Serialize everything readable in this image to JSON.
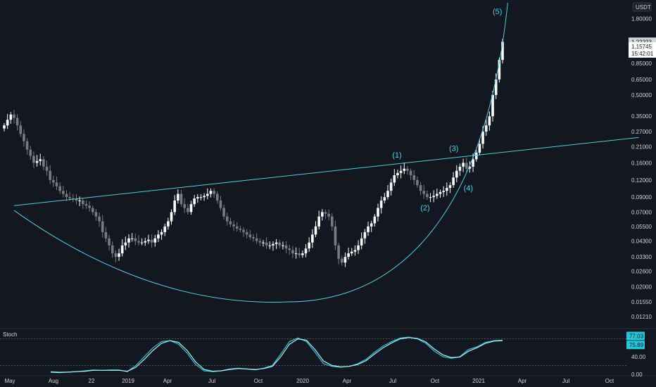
{
  "chart_data": [
    {
      "type": "candlestick",
      "title": "",
      "quote_unit": "USDT",
      "y_scale": "log",
      "ylim": [
        0.0105,
        2.35
      ],
      "y_ticks": [
        "1.80000",
        "1.22223",
        "0.85000",
        "0.65000",
        "0.50000",
        "0.35000",
        "0.27000",
        "0.21000",
        "0.16000",
        "0.12000",
        "0.09000",
        "0.07000",
        "0.05500",
        "0.04300",
        "0.03300",
        "0.02600",
        "0.02000",
        "0.01550",
        "0.01210"
      ],
      "x_ticks": [
        "May",
        "Aug",
        "22",
        "2019",
        "Apr",
        "Jul",
        "Oct",
        "2020",
        "Apr",
        "Jul",
        "Oct",
        "2021",
        "Apr",
        "Jul",
        "Oct"
      ],
      "price_labels": {
        "last_close": "1.22223",
        "prev_price": "1.15745",
        "countdown": "15:42:01",
        "last_close_value": 1.22223,
        "prev_price_value": 1.15745
      },
      "elliott_wave_labels": [
        {
          "text": "(1)",
          "x": "2020-07",
          "y": 0.175
        },
        {
          "text": "(2)",
          "x": "2020-09",
          "y": 0.072
        },
        {
          "text": "(3)",
          "x": "2020-11",
          "y": 0.195
        },
        {
          "text": "(4)",
          "x": "2020-12",
          "y": 0.1
        },
        {
          "text": "(5)",
          "x": "2021-02",
          "y": 1.95
        }
      ],
      "trendline": {
        "from": {
          "x": "2018-05",
          "y": 0.078
        },
        "to": {
          "x": "2021-12",
          "y": 0.245
        }
      },
      "cup_curve": {
        "start": {
          "x": "2018-05",
          "y": 0.072
        },
        "bottom": {
          "x": "2019-12",
          "y": 0.0155
        },
        "end": {
          "x": "2021-03",
          "y": 2.35
        }
      },
      "grid": false,
      "weekly_close_series": [
        0.3,
        0.33,
        0.36,
        0.34,
        0.3,
        0.26,
        0.23,
        0.2,
        0.18,
        0.16,
        0.165,
        0.17,
        0.15,
        0.14,
        0.12,
        0.115,
        0.108,
        0.1,
        0.095,
        0.09,
        0.088,
        0.087,
        0.085,
        0.085,
        0.08,
        0.078,
        0.075,
        0.07,
        0.065,
        0.06,
        0.05,
        0.045,
        0.04,
        0.035,
        0.033,
        0.035,
        0.04,
        0.042,
        0.045,
        0.045,
        0.043,
        0.042,
        0.042,
        0.043,
        0.044,
        0.042,
        0.045,
        0.048,
        0.05,
        0.055,
        0.06,
        0.07,
        0.085,
        0.095,
        0.08,
        0.075,
        0.07,
        0.08,
        0.088,
        0.09,
        0.09,
        0.092,
        0.095,
        0.1,
        0.095,
        0.085,
        0.075,
        0.065,
        0.06,
        0.057,
        0.055,
        0.053,
        0.052,
        0.05,
        0.048,
        0.046,
        0.045,
        0.043,
        0.042,
        0.042,
        0.04,
        0.04,
        0.041,
        0.042,
        0.04,
        0.04,
        0.038,
        0.037,
        0.035,
        0.035,
        0.034,
        0.035,
        0.038,
        0.042,
        0.048,
        0.055,
        0.065,
        0.07,
        0.068,
        0.065,
        0.055,
        0.04,
        0.032,
        0.03,
        0.033,
        0.035,
        0.036,
        0.037,
        0.04,
        0.045,
        0.05,
        0.055,
        0.058,
        0.065,
        0.075,
        0.085,
        0.09,
        0.1,
        0.115,
        0.13,
        0.135,
        0.14,
        0.145,
        0.14,
        0.13,
        0.12,
        0.11,
        0.1,
        0.095,
        0.09,
        0.09,
        0.092,
        0.095,
        0.098,
        0.1,
        0.105,
        0.11,
        0.125,
        0.14,
        0.15,
        0.16,
        0.145,
        0.15,
        0.17,
        0.19,
        0.22,
        0.27,
        0.3,
        0.35,
        0.5,
        0.65,
        0.9,
        1.22223
      ],
      "notes": "weekly closes from May 2018 to Feb 2021 (estimated from chart)"
    },
    {
      "type": "line",
      "title": "Stoch",
      "ylim": [
        0,
        100
      ],
      "y_ticks": [
        "40.00",
        "0.00"
      ],
      "y_tick_values": [
        40,
        0
      ],
      "last_values": [
        "77.03",
        "75.89"
      ],
      "levels": [
        80,
        20
      ],
      "series": [
        {
          "color": "#26c6da",
          "values": [
            6,
            5,
            5,
            6,
            8,
            10,
            9,
            10,
            10,
            6,
            20,
            40,
            60,
            74,
            76,
            68,
            48,
            22,
            8,
            6,
            8,
            12,
            14,
            12,
            10,
            14,
            20,
            46,
            74,
            82,
            74,
            50,
            24,
            18,
            16,
            18,
            24,
            34,
            50,
            64,
            74,
            82,
            84,
            80,
            70,
            52,
            40,
            36,
            40,
            56,
            62,
            72,
            76,
            77
          ]
        },
        {
          "color": "#b2ebf2",
          "values": [
            5,
            4,
            5,
            6,
            7,
            9,
            9,
            9,
            9,
            7,
            16,
            34,
            54,
            70,
            76,
            72,
            54,
            28,
            11,
            7,
            8,
            11,
            13,
            12,
            11,
            13,
            18,
            40,
            68,
            80,
            77,
            56,
            30,
            20,
            17,
            18,
            22,
            31,
            46,
            60,
            71,
            80,
            83,
            81,
            73,
            57,
            44,
            38,
            39,
            52,
            60,
            70,
            75,
            75.89
          ]
        }
      ]
    }
  ],
  "colors": {
    "background": "#131722",
    "candle_up": "#ffffff",
    "candle_down": "#787b86",
    "cyan": "#4dd0e1",
    "text": "#d1d4dc",
    "pane_border": "#2a2e39"
  }
}
